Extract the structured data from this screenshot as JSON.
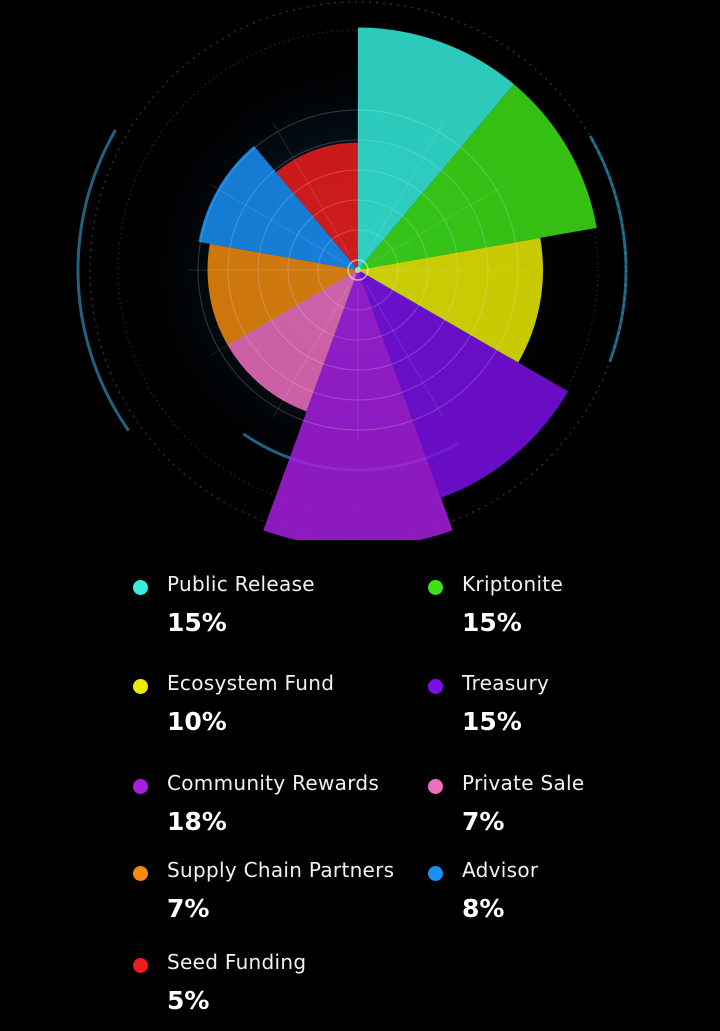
{
  "colors": {
    "background": "#000000",
    "hud_line": "#3fc6ff"
  },
  "chart_data": {
    "type": "pie",
    "variant": "polar-area",
    "title": "",
    "slices": [
      {
        "label": "Public Release",
        "value": 15,
        "value_label": "15%",
        "color": "#35eddc"
      },
      {
        "label": "Kriptonite",
        "value": 15,
        "value_label": "15%",
        "color": "#3ee116"
      },
      {
        "label": "Ecosystem Fund",
        "value": 10,
        "value_label": "10%",
        "color": "#ecec00"
      },
      {
        "label": "Treasury",
        "value": 15,
        "value_label": "15%",
        "color": "#7a0fe6"
      },
      {
        "label": "Community Rewards",
        "value": 18,
        "value_label": "18%",
        "color": "#a61ee0"
      },
      {
        "label": "Private Sale",
        "value": 7,
        "value_label": "7%",
        "color": "#f06ec0"
      },
      {
        "label": "Supply Chain Partners",
        "value": 7,
        "value_label": "7%",
        "color": "#f28a0c"
      },
      {
        "label": "Advisor",
        "value": 8,
        "value_label": "8%",
        "color": "#1a8ff5"
      },
      {
        "label": "Seed Funding",
        "value": 5,
        "value_label": "5%",
        "color": "#ee1c1c"
      }
    ],
    "legend": {
      "placement": "bottom",
      "columns": 2
    }
  }
}
